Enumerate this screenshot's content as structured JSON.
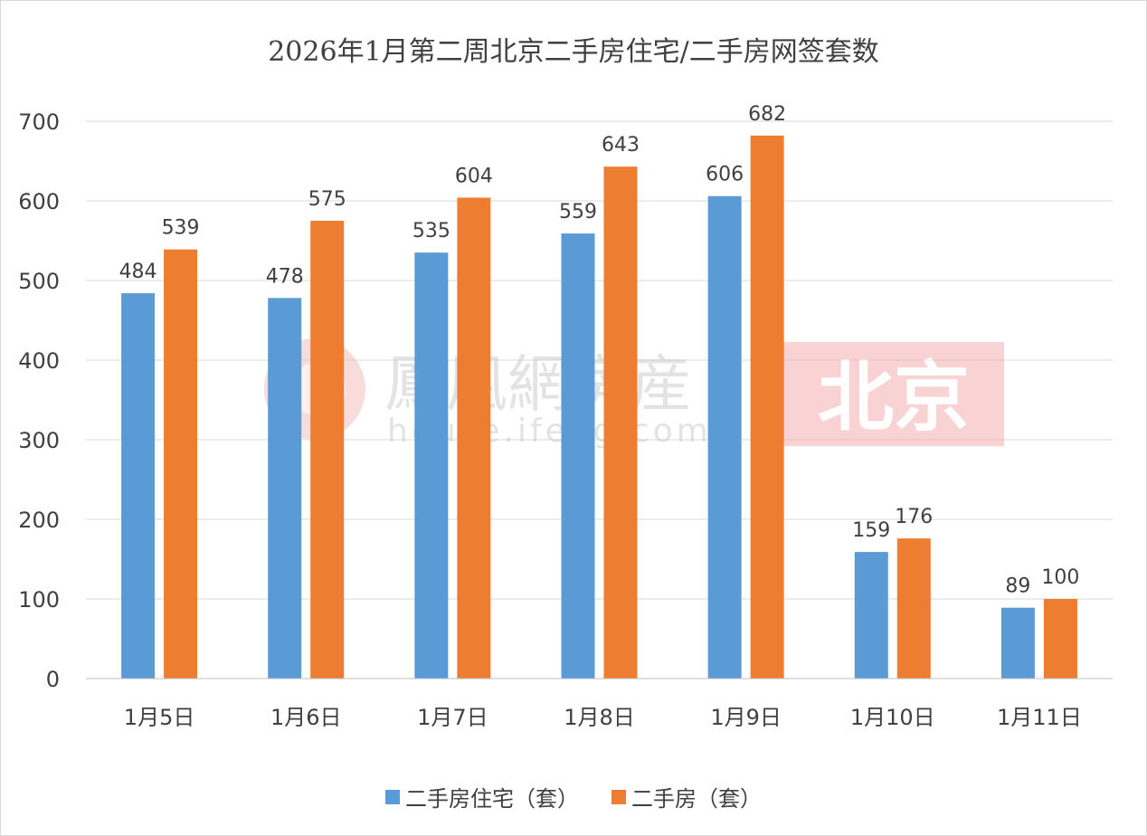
{
  "chart_data": {
    "type": "bar",
    "title": "2026年1月第二周北京二手房住宅/二手房网签套数",
    "categories": [
      "1月5日",
      "1月6日",
      "1月7日",
      "1月8日",
      "1月9日",
      "1月10日",
      "1月11日"
    ],
    "series": [
      {
        "name": "二手房住宅（套）",
        "color": "#5B9BD5",
        "values": [
          484,
          478,
          535,
          559,
          606,
          159,
          89
        ]
      },
      {
        "name": "二手房（套）",
        "color": "#ED7D31",
        "values": [
          539,
          575,
          604,
          643,
          682,
          176,
          100
        ]
      }
    ],
    "ylim": [
      0,
      700
    ],
    "yticks": [
      0,
      100,
      200,
      300,
      400,
      500,
      600,
      700
    ],
    "grid": true,
    "legend": "bottom"
  },
  "watermark": {
    "brand": "鳳凰網房産",
    "url": "house.ifeng.com",
    "city": "北京"
  }
}
